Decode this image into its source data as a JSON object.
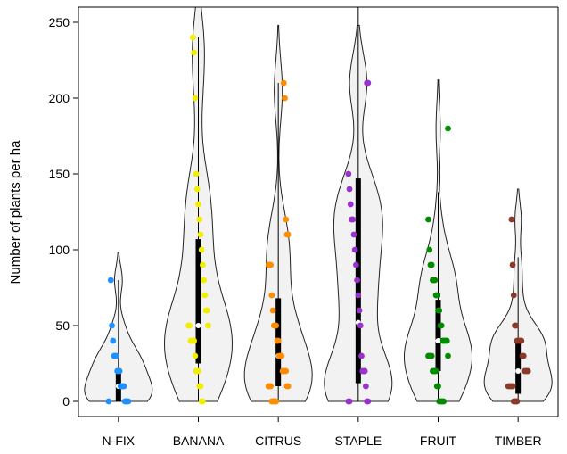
{
  "chart_data": {
    "type": "violin",
    "ylabel": "Number of plants per ha",
    "xlabel": "",
    "ylim": [
      -10,
      260
    ],
    "yticks": [
      0,
      50,
      100,
      150,
      200,
      250
    ],
    "categories": [
      "N-FIX",
      "BANANA",
      "CITRUS",
      "STAPLE",
      "FRUIT",
      "TIMBER"
    ],
    "colors": [
      "#1e90ff",
      "#f2ee00",
      "#ff8c00",
      "#9932cc",
      "#008b00",
      "#8b3a2a"
    ],
    "violin_fill": "#f2f2f2",
    "series": [
      {
        "category": "N-FIX",
        "box": {
          "q1": 0,
          "median": 10,
          "q3": 20,
          "whisker_low": 0,
          "whisker_high": 80
        },
        "points": [
          0,
          0,
          0,
          0,
          0,
          10,
          10,
          10,
          10,
          20,
          20,
          20,
          30,
          30,
          30,
          40,
          50,
          80
        ]
      },
      {
        "category": "BANANA",
        "box": {
          "q1": 25,
          "median": 50,
          "q3": 107,
          "whisker_low": 0,
          "whisker_high": 240
        },
        "points": [
          0,
          0,
          10,
          10,
          20,
          20,
          20,
          30,
          40,
          40,
          40,
          40,
          50,
          50,
          50,
          60,
          60,
          70,
          80,
          90,
          100,
          110,
          120,
          130,
          140,
          150,
          200,
          230,
          240
        ]
      },
      {
        "category": "CITRUS",
        "box": {
          "q1": 10,
          "median": 30,
          "q3": 68,
          "whisker_low": 0,
          "whisker_high": 210
        },
        "points": [
          0,
          0,
          0,
          0,
          0,
          10,
          10,
          10,
          10,
          10,
          20,
          20,
          20,
          20,
          30,
          30,
          30,
          40,
          40,
          50,
          50,
          50,
          60,
          70,
          90,
          90,
          90,
          110,
          110,
          120,
          200,
          210
        ]
      },
      {
        "category": "STAPLE",
        "box": {
          "q1": 12,
          "median": 52,
          "q3": 147,
          "whisker_low": 0,
          "whisker_high": 260
        },
        "points": [
          0,
          0,
          0,
          0,
          10,
          20,
          20,
          20,
          30,
          50,
          60,
          70,
          80,
          90,
          100,
          110,
          120,
          120,
          130,
          140,
          150,
          210,
          210
        ]
      },
      {
        "category": "FRUIT",
        "box": {
          "q1": 20,
          "median": 40,
          "q3": 67,
          "whisker_low": 0,
          "whisker_high": 138
        },
        "points": [
          0,
          0,
          0,
          0,
          0,
          10,
          10,
          20,
          20,
          20,
          20,
          30,
          30,
          30,
          30,
          30,
          40,
          40,
          40,
          40,
          40,
          50,
          50,
          60,
          60,
          70,
          70,
          80,
          80,
          80,
          90,
          90,
          100,
          120,
          180
        ]
      },
      {
        "category": "TIMBER",
        "box": {
          "q1": 5,
          "median": 20,
          "q3": 40,
          "whisker_low": 0,
          "whisker_high": 95
        },
        "points": [
          0,
          0,
          0,
          0,
          10,
          10,
          10,
          10,
          10,
          20,
          20,
          20,
          20,
          30,
          30,
          40,
          40,
          40,
          40,
          40,
          50,
          50,
          70,
          90,
          120
        ]
      }
    ]
  }
}
